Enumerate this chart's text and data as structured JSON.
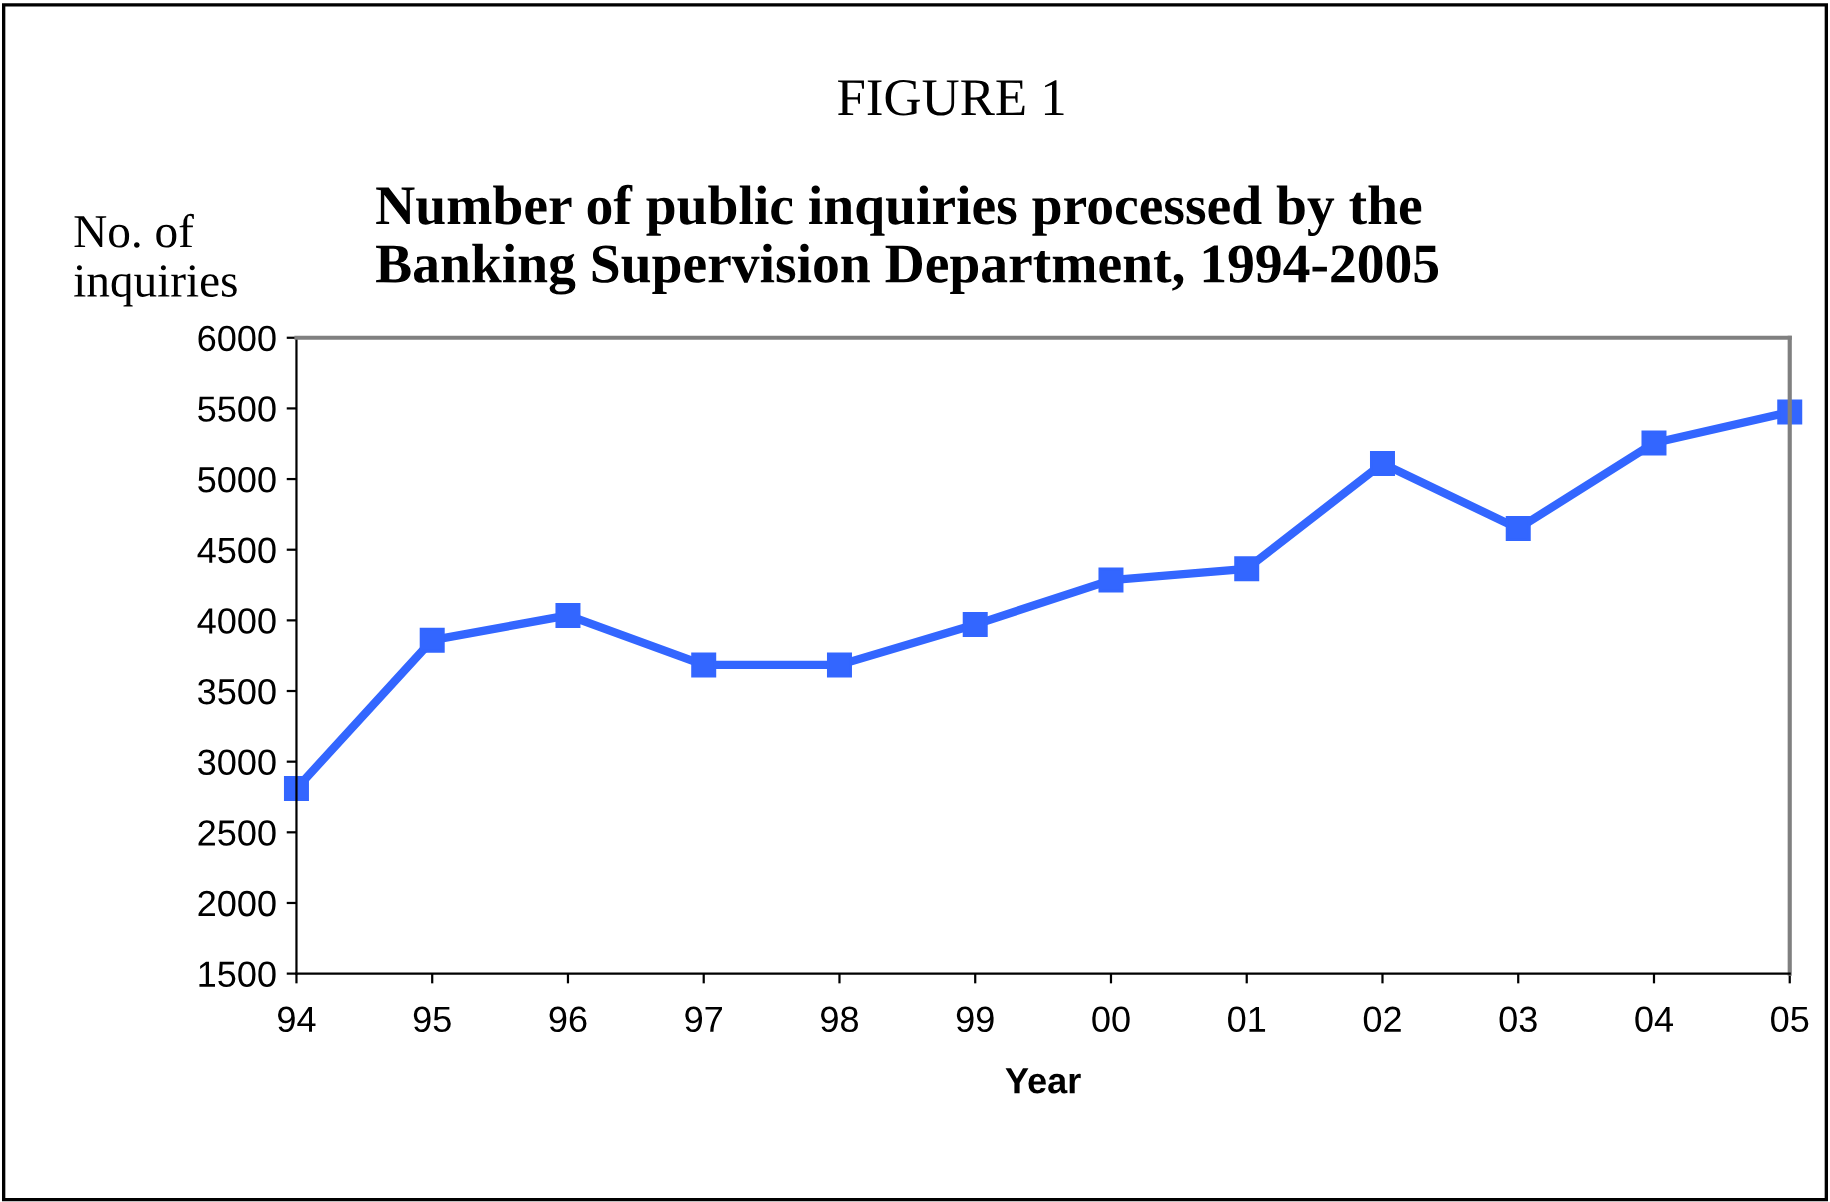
{
  "chart_data": {
    "type": "line",
    "title": "Number of public inquiries processed by the\nBanking Supervision Department, 1994-2005",
    "annotations": [
      "FIGURE 1"
    ],
    "ylabel": "No. of\ninquiries",
    "xlabel": "Year",
    "categories": [
      "94",
      "95",
      "96",
      "97",
      "98",
      "99",
      "00",
      "01",
      "02",
      "03",
      "04",
      "05"
    ],
    "series": [
      {
        "color": "#3366ff",
        "values": [
          2810,
          3860,
          4035,
          3685,
          3685,
          3970,
          4285,
          4365,
          5110,
          4650,
          5255,
          5475
        ]
      }
    ],
    "ylim": [
      1500,
      6000
    ],
    "yticks": [
      1500,
      2000,
      2500,
      3000,
      3500,
      4000,
      4500,
      5000,
      5500,
      6000
    ],
    "grid": false,
    "legend": false,
    "marker": "square",
    "line_style": "solid"
  }
}
